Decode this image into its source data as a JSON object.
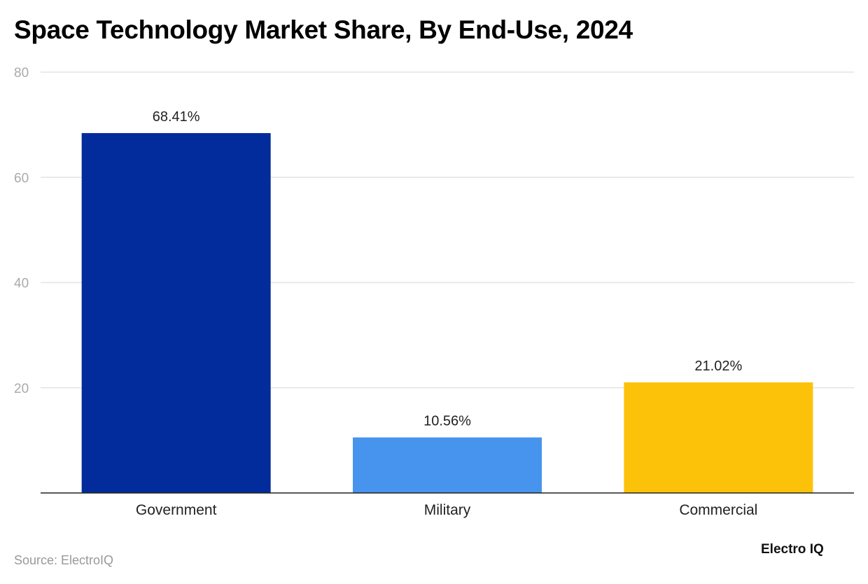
{
  "chart_data": {
    "type": "bar",
    "title": "Space Technology Market Share, By End-Use, 2024",
    "categories": [
      "Government",
      "Military",
      "Commercial"
    ],
    "values": [
      68.41,
      10.56,
      21.02
    ],
    "data_labels": [
      "68.41%",
      "10.56%",
      "21.02%"
    ],
    "colors": [
      "#022c9b",
      "#4794ee",
      "#fcc20a"
    ],
    "ylim": [
      0,
      80
    ],
    "yticks": [
      20,
      40,
      60,
      80
    ],
    "grid": true,
    "xlabel": "",
    "ylabel": ""
  },
  "source": "Source: ElectroIQ",
  "logo": "Electro IQ"
}
